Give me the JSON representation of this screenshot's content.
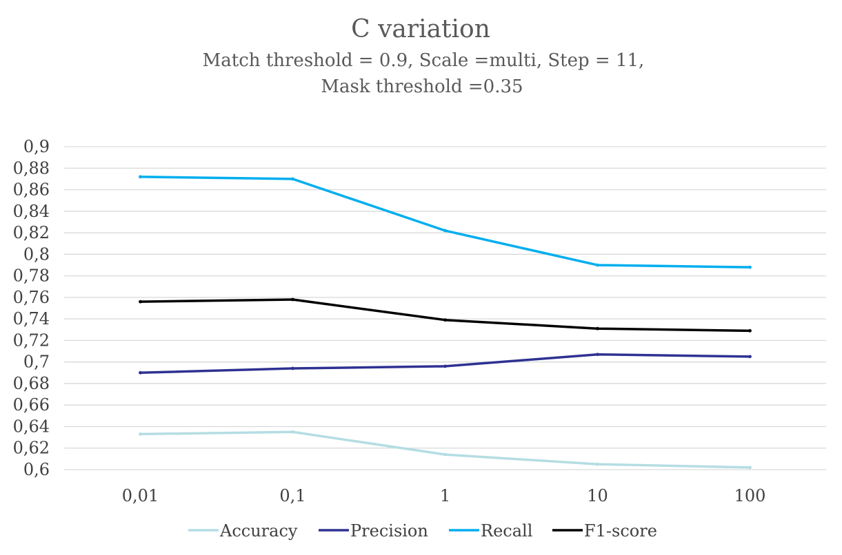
{
  "chart_data": {
    "type": "line",
    "title": "C variation",
    "subtitle_lines": [
      "Match threshold = 0.9, Scale =multi, Step = 11,",
      "Mask threshold =0.35"
    ],
    "xlabel": "",
    "ylabel": "",
    "categories": [
      "0,01",
      "0,1",
      "1",
      "10",
      "100"
    ],
    "ylim": [
      0.6,
      0.9
    ],
    "yticks": [
      0.6,
      0.62,
      0.64,
      0.66,
      0.68,
      0.7,
      0.72,
      0.74,
      0.76,
      0.78,
      0.8,
      0.82,
      0.84,
      0.86,
      0.88,
      0.9
    ],
    "ytick_labels": [
      "0,6",
      "0,62",
      "0,64",
      "0,66",
      "0,68",
      "0,7",
      "0,72",
      "0,74",
      "0,76",
      "0,78",
      "0,8",
      "0,82",
      "0,84",
      "0,86",
      "0,88",
      "0,9"
    ],
    "grid": true,
    "legend_position": "bottom",
    "series": [
      {
        "name": "Accuracy",
        "color": "#b4dde3",
        "values": [
          0.633,
          0.635,
          0.614,
          0.605,
          0.602
        ]
      },
      {
        "name": "Precision",
        "color": "#2e3192",
        "values": [
          0.69,
          0.694,
          0.696,
          0.707,
          0.705
        ]
      },
      {
        "name": "Recall",
        "color": "#00aeef",
        "values": [
          0.872,
          0.87,
          0.822,
          0.79,
          0.788
        ]
      },
      {
        "name": "F1-score",
        "color": "#000000",
        "values": [
          0.756,
          0.758,
          0.739,
          0.731,
          0.729
        ]
      }
    ]
  }
}
